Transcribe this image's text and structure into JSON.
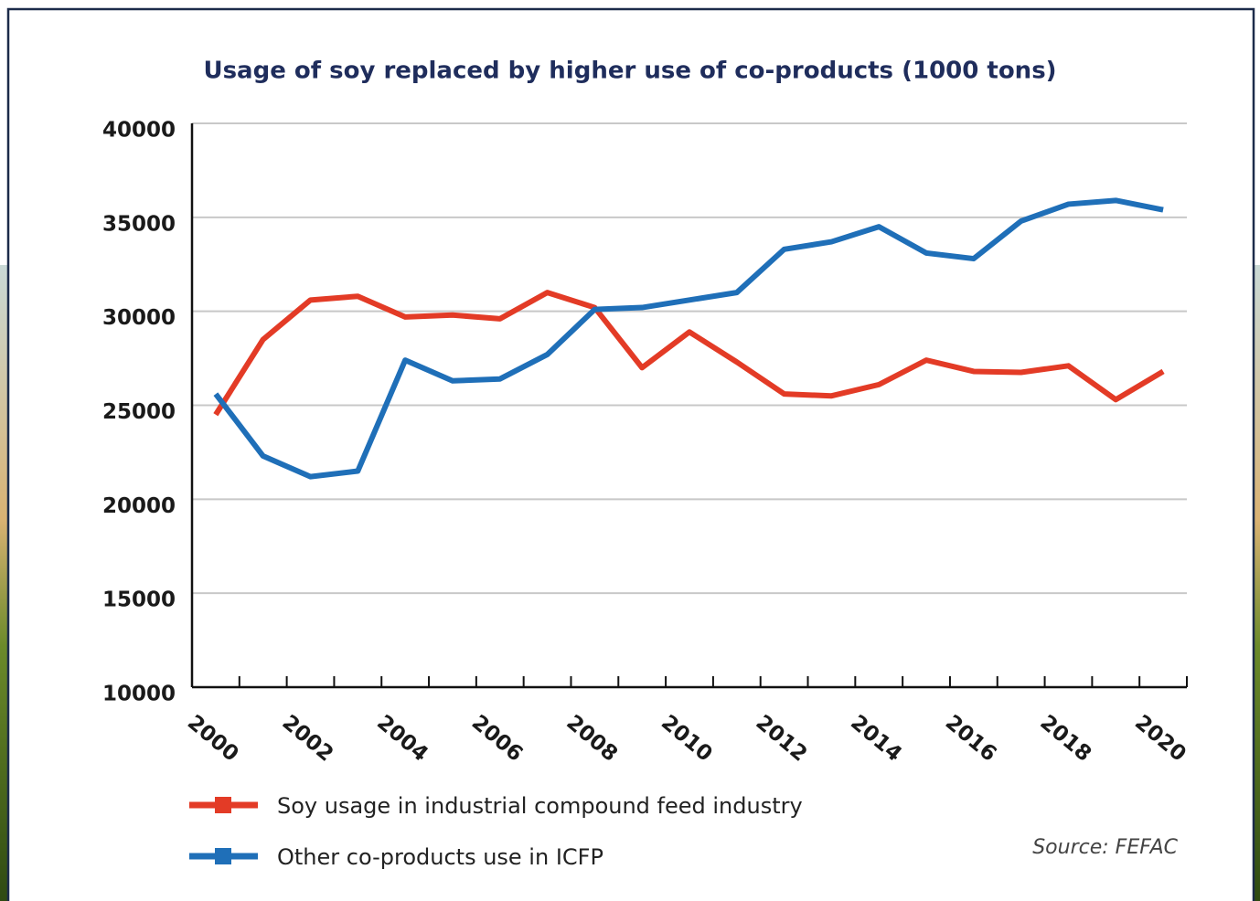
{
  "chart_data": {
    "type": "line",
    "title": "Usage of soy replaced by higher use of co-products (1000 tons)",
    "categories": [
      "2000",
      null,
      "2002",
      null,
      "2004",
      null,
      "2006",
      null,
      "2008",
      null,
      "2010",
      null,
      "2012",
      null,
      "2014",
      null,
      "2016",
      null,
      "2018",
      null,
      "2020"
    ],
    "series": [
      {
        "name": "Soy usage in industrial compound feed industry",
        "color": "#e33b26",
        "values": [
          24500,
          28500,
          30600,
          30800,
          29700,
          29800,
          29600,
          31000,
          30200,
          27000,
          28900,
          27300,
          25600,
          25500,
          26100,
          27400,
          26800,
          26750,
          27100,
          25300,
          26800
        ]
      },
      {
        "name": "Other co-products use in ICFP",
        "color": "#1f6fb8",
        "values": [
          25600,
          22300,
          21200,
          21500,
          27400,
          26300,
          26400,
          27700,
          30100,
          30200,
          30600,
          31000,
          33300,
          33700,
          34500,
          33100,
          32800,
          34800,
          35700,
          35900,
          35400
        ]
      }
    ],
    "ylim": [
      10000,
      40000
    ],
    "yticks": [
      10000,
      15000,
      20000,
      25000,
      30000,
      35000,
      40000
    ],
    "grid": true,
    "source": "Source: FEFAC"
  }
}
